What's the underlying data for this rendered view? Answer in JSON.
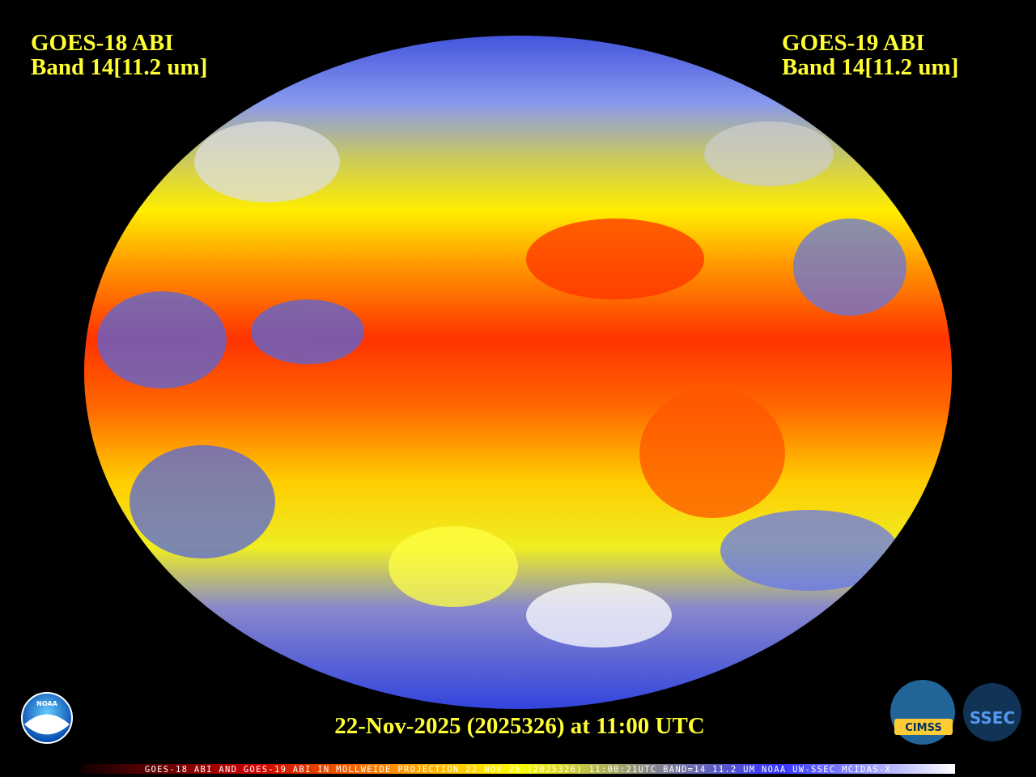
{
  "header": {
    "left": [
      "GOES-18 ABI",
      "Band 14[11.2 um]"
    ],
    "right": [
      "GOES-19 ABI",
      "Band 14[11.2 um]"
    ]
  },
  "timestamp": "22-Nov-2025 (2025326) at 11:00 UTC",
  "footer": "GOES-18 ABI AND GOES-19 ABI IN MOLLWEIDE PROJECTION 22 NOV 25 (2025326) 11:00:21UTC BAND=14 11.2 UM NOAA UW-SSEC MCIDAS-X",
  "logos": [
    "NOAA",
    "CIMSS",
    "SSEC"
  ]
}
